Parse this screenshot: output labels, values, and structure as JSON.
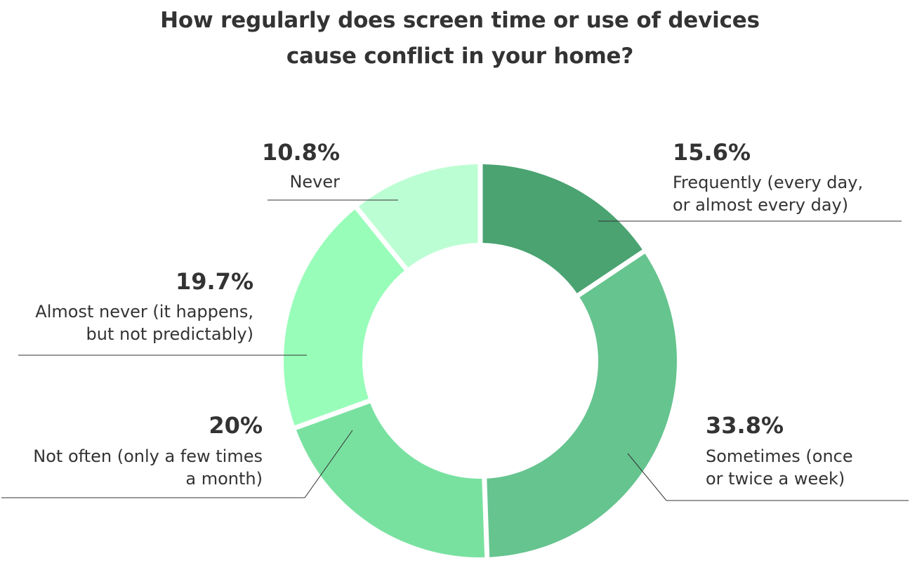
{
  "chart_data": {
    "type": "pie",
    "variant": "donut",
    "title": "How regularly does screen time or use of devices cause conflict in your home?",
    "title_lines": [
      "How regularly does screen time or use of devices",
      "cause conflict in your home?"
    ],
    "unit": "%",
    "slices": [
      {
        "key": "frequently",
        "value": 15.6,
        "pct_label": "15.6%",
        "label_lines": [
          "Frequently (every day,",
          "or almost every day)"
        ],
        "color": "#4aa371"
      },
      {
        "key": "sometimes",
        "value": 33.8,
        "pct_label": "33.8%",
        "label_lines": [
          "Sometimes (once",
          "or twice a week)"
        ],
        "color": "#66c48f"
      },
      {
        "key": "not-often",
        "value": 20,
        "pct_label": "20%",
        "label_lines": [
          "Not often (only a few times",
          "a month)"
        ],
        "color": "#79e1a0"
      },
      {
        "key": "almost-never",
        "value": 19.7,
        "pct_label": "19.7%",
        "label_lines": [
          "Almost never (it happens,",
          "but not predictably)"
        ],
        "color": "#98fdb9"
      },
      {
        "key": "never",
        "value": 10.8,
        "pct_label": "10.8%",
        "label_lines": [
          "Never"
        ],
        "color": "#bcfed3"
      }
    ]
  }
}
